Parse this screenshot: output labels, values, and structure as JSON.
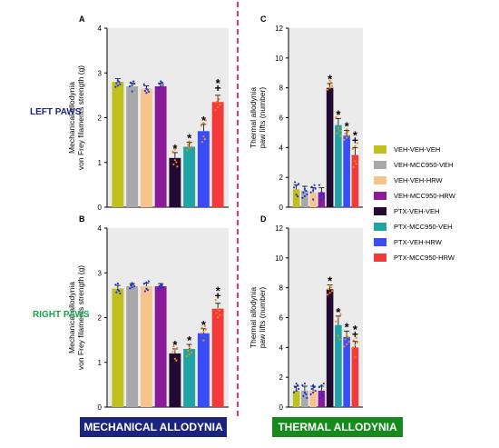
{
  "row_labels": {
    "left_paws": "LEFT PAWS",
    "right_paws": "RIGHT PAWS"
  },
  "section_labels": {
    "mechanical": "MECHANICAL ALLODYNIA",
    "thermal": "THERMAL ALLODYNIA"
  },
  "colors": {
    "left_paws_text": "#1a237e",
    "right_paws_text": "#16a34a",
    "mechanical_box": "#1a237e",
    "thermal_box": "#178a1e",
    "divider": "#e8336b",
    "plot_bg": "#ebebeb"
  },
  "legend": [
    {
      "label": "VEH-VEH-VEH",
      "color": "#bfbf1f"
    },
    {
      "label": "VEH-MCC950-VEH",
      "color": "#a8a8a8"
    },
    {
      "label": "VEH-VEH-HRW",
      "color": "#f7c38d"
    },
    {
      "label": "VEH-MCC950-HRW",
      "color": "#8b1a99"
    },
    {
      "label": "PTX-VEH-VEH",
      "color": "#230a33"
    },
    {
      "label": "PTX-MCC950-VEH",
      "color": "#1fa3a3"
    },
    {
      "label": "PTX-VEH-HRW",
      "color": "#3a4df5"
    },
    {
      "label": "PTX-MCC950-HRW",
      "color": "#f23a3a"
    }
  ],
  "chart_data": [
    {
      "panel": "A",
      "type": "bar",
      "ylabel": [
        "Mechanical allodynia",
        "von Frey filaments strength (g)"
      ],
      "ylim": [
        0,
        4
      ],
      "yticks": [
        0,
        1,
        2,
        3,
        4
      ],
      "categories": [
        "VEH-VEH-VEH",
        "VEH-MCC950-VEH",
        "VEH-VEH-HRW",
        "VEH-MCC950-HRW",
        "PTX-VEH-VEH",
        "PTX-MCC950-VEH",
        "PTX-VEH-HRW",
        "PTX-MCC950-HRW"
      ],
      "values": [
        2.8,
        2.7,
        2.65,
        2.7,
        1.1,
        1.35,
        1.7,
        2.35
      ],
      "errors": [
        0.07,
        0.07,
        0.06,
        0.07,
        0.12,
        0.1,
        0.15,
        0.15
      ],
      "annotations": [
        "",
        "",
        "",
        "",
        "*",
        "*",
        "*",
        "*+"
      ]
    },
    {
      "panel": "B",
      "type": "bar",
      "ylabel": [
        "Mechanical allodynia",
        "von Frey filaments strength (g)"
      ],
      "ylim": [
        0,
        4
      ],
      "yticks": [
        0,
        1,
        2,
        3,
        4
      ],
      "categories": [
        "VEH-VEH-VEH",
        "VEH-MCC950-VEH",
        "VEH-VEH-HRW",
        "VEH-MCC950-HRW",
        "PTX-VEH-VEH",
        "PTX-MCC950-VEH",
        "PTX-VEH-HRW",
        "PTX-MCC950-HRW"
      ],
      "values": [
        2.65,
        2.7,
        2.7,
        2.7,
        1.2,
        1.3,
        1.65,
        2.2
      ],
      "errors": [
        0.07,
        0.06,
        0.07,
        0.06,
        0.1,
        0.1,
        0.1,
        0.12
      ],
      "annotations": [
        "",
        "",
        "",
        "",
        "*",
        "*",
        "*",
        "*+"
      ]
    },
    {
      "panel": "C",
      "type": "bar",
      "ylabel": [
        "Thermal allodynia",
        "paw lifts (number)"
      ],
      "ylim": [
        0,
        12
      ],
      "yticks": [
        0,
        2,
        4,
        6,
        8,
        10,
        12
      ],
      "categories": [
        "VEH-VEH-VEH",
        "VEH-MCC950-VEH",
        "VEH-VEH-HRW",
        "VEH-MCC950-HRW",
        "PTX-VEH-VEH",
        "PTX-MCC950-VEH",
        "PTX-VEH-HRW",
        "PTX-MCC950-HRW"
      ],
      "values": [
        1.2,
        1.1,
        1.0,
        1.0,
        8.0,
        5.5,
        4.8,
        3.5
      ],
      "errors": [
        0.3,
        0.3,
        0.3,
        0.3,
        0.3,
        0.45,
        0.35,
        0.5
      ],
      "annotations": [
        "",
        "",
        "",
        "",
        "*",
        "*",
        "*",
        "*+"
      ]
    },
    {
      "panel": "D",
      "type": "bar",
      "ylabel": [
        "Thermal allodynia",
        "paw lifts (number)"
      ],
      "ylim": [
        0,
        12
      ],
      "yticks": [
        0,
        2,
        4,
        6,
        8,
        10,
        12
      ],
      "categories": [
        "VEH-VEH-VEH",
        "VEH-MCC950-VEH",
        "VEH-VEH-HRW",
        "VEH-MCC950-HRW",
        "PTX-VEH-VEH",
        "PTX-MCC950-VEH",
        "PTX-VEH-HRW",
        "PTX-MCC950-HRW"
      ],
      "values": [
        1.1,
        1.1,
        1.1,
        1.1,
        7.9,
        5.5,
        4.7,
        4.0
      ],
      "errors": [
        0.3,
        0.3,
        0.3,
        0.3,
        0.3,
        0.6,
        0.4,
        0.4
      ],
      "annotations": [
        "",
        "",
        "",
        "",
        "*",
        "*",
        "*",
        "*+"
      ]
    }
  ]
}
